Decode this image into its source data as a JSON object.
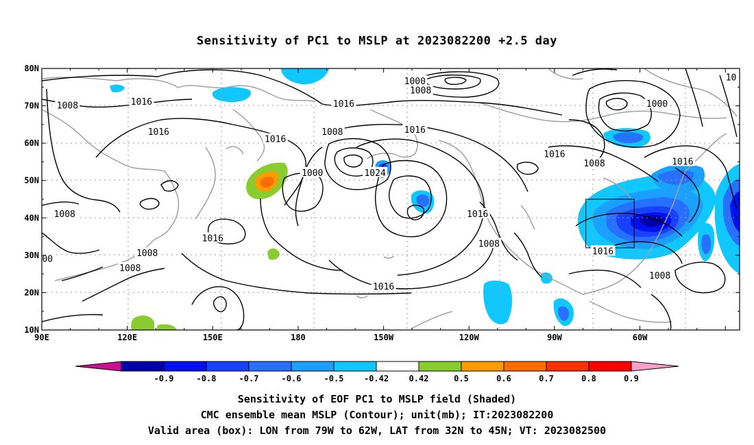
{
  "title": "Sensitivity of PC1 to MSLP at 2023082200 +2.5 day",
  "axes": {
    "lat_labels": [
      "10N",
      "20N",
      "30N",
      "40N",
      "50N",
      "60N",
      "70N",
      "80N"
    ],
    "lon_labels": [
      "90E",
      "120E",
      "150E",
      "180",
      "150W",
      "120W",
      "90W",
      "60W"
    ]
  },
  "contour_labels": [
    {
      "text": "1000",
      "lon": 221,
      "lat": 76.5
    },
    {
      "text": "1008",
      "lon": 223,
      "lat": 74.0
    },
    {
      "text": "1016",
      "lon": 196,
      "lat": 70.5
    },
    {
      "text": "1016",
      "lon": 125,
      "lat": 71.0
    },
    {
      "text": "1008",
      "lon": 99,
      "lat": 70.0
    },
    {
      "text": "1016",
      "lon": 131,
      "lat": 63.0
    },
    {
      "text": "1016",
      "lon": 172,
      "lat": 61.0
    },
    {
      "text": "1008",
      "lon": 192,
      "lat": 63.0
    },
    {
      "text": "1016",
      "lon": 221,
      "lat": 63.5
    },
    {
      "text": "1000",
      "lon": 185,
      "lat": 52.0
    },
    {
      "text": "1024",
      "lon": 207,
      "lat": 52.0
    },
    {
      "text": "1016",
      "lon": 270,
      "lat": 57.0
    },
    {
      "text": "1008",
      "lon": 284,
      "lat": 54.5
    },
    {
      "text": "1016",
      "lon": 315,
      "lat": 55.0
    },
    {
      "text": "1000",
      "lon": 306,
      "lat": 70.5
    },
    {
      "text": "1008",
      "lon": 98,
      "lat": 41.0
    },
    {
      "text": "1016",
      "lon": 150,
      "lat": 34.5
    },
    {
      "text": "1008",
      "lon": 127,
      "lat": 30.5
    },
    {
      "text": "1008",
      "lon": 121,
      "lat": 26.5
    },
    {
      "text": "1016",
      "lon": 243,
      "lat": 41.0
    },
    {
      "text": "1008",
      "lon": 247,
      "lat": 33.0
    },
    {
      "text": "1016",
      "lon": 287,
      "lat": 31.0
    },
    {
      "text": "1016",
      "lon": 210,
      "lat": 21.5
    },
    {
      "text": "1008",
      "lon": 307,
      "lat": 24.5
    },
    {
      "text": "10",
      "lon": 332,
      "lat": 77.5
    },
    {
      "text": "00",
      "lon": 92,
      "lat": 29.0
    }
  ],
  "valid_box": {
    "lon_min": 281,
    "lon_max": 298,
    "lat_min": 32,
    "lat_max": 45
  },
  "colorbar": {
    "labels": [
      "-0.9",
      "-0.8",
      "-0.7",
      "-0.6",
      "-0.5",
      "-0.42",
      "0.42",
      "0.5",
      "0.6",
      "0.7",
      "0.8",
      "0.9"
    ],
    "colors": [
      "#0000a8",
      "#0010f0",
      "#1840ff",
      "#2870ff",
      "#1ca0ff",
      "#10c8ff",
      "#ffffff",
      "#88cc30",
      "#ff9c00",
      "#ff6c00",
      "#ff3000",
      "#ff0000"
    ],
    "low_end_color": "#c81090",
    "high_end_color": "#ffa0c8"
  },
  "captions": {
    "line1": "Sensitivity of EOF PC1 to MSLP field (Shaded)",
    "line2": "CMC ensemble mean MSLP (Contour); unit(mb); IT:2023082200",
    "line3": "Valid area (box): LON from 79W to 62W, LAT from 32N to 45N; VT: 2023082500"
  }
}
